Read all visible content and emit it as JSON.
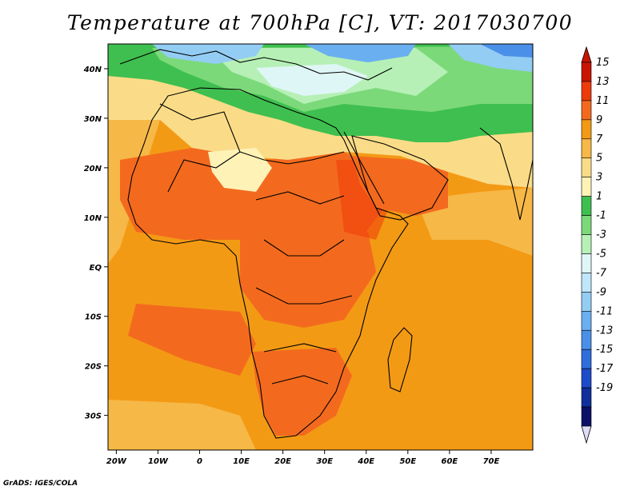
{
  "title": "Temperature at 700hPa [C], VT: 2017030700",
  "credit": "GrADS: IGES/COLA",
  "map": {
    "lon_range": [
      -22,
      80
    ],
    "lat_range": [
      -37,
      45
    ],
    "lon_ticks": [
      {
        "value": -20,
        "label": "20W"
      },
      {
        "value": -10,
        "label": "10W"
      },
      {
        "value": 0,
        "label": "0"
      },
      {
        "value": 10,
        "label": "10E"
      },
      {
        "value": 20,
        "label": "20E"
      },
      {
        "value": 30,
        "label": "30E"
      },
      {
        "value": 40,
        "label": "40E"
      },
      {
        "value": 50,
        "label": "50E"
      },
      {
        "value": 60,
        "label": "60E"
      },
      {
        "value": 70,
        "label": "70E"
      }
    ],
    "lat_ticks": [
      {
        "value": 40,
        "label": "40N"
      },
      {
        "value": 30,
        "label": "30N"
      },
      {
        "value": 20,
        "label": "20N"
      },
      {
        "value": 10,
        "label": "10N"
      },
      {
        "value": 0,
        "label": "EQ"
      },
      {
        "value": -10,
        "label": "10S"
      },
      {
        "value": -20,
        "label": "20S"
      },
      {
        "value": -30,
        "label": "30S"
      }
    ]
  },
  "colorbar": {
    "labels": [
      "15",
      "13",
      "11",
      "9",
      "7",
      "5",
      "3",
      "1",
      "-1",
      "-3",
      "-5",
      "-7",
      "-9",
      "-11",
      "-13",
      "-15",
      "-17",
      "-19"
    ],
    "colors": [
      "#c81400",
      "#ee3a0a",
      "#f36a1e",
      "#f39a15",
      "#f6b847",
      "#fadc88",
      "#fff2b6",
      "#3fbf4f",
      "#7bd97a",
      "#b6f0b6",
      "#dff6f6",
      "#bfe6fb",
      "#93cdf4",
      "#6aaff0",
      "#4b90e8",
      "#2f6edc",
      "#1e4cc8",
      "#0f2f9a",
      "#0b1066"
    ],
    "over_color": "#c81400",
    "under_color": "#dedcf6"
  }
}
